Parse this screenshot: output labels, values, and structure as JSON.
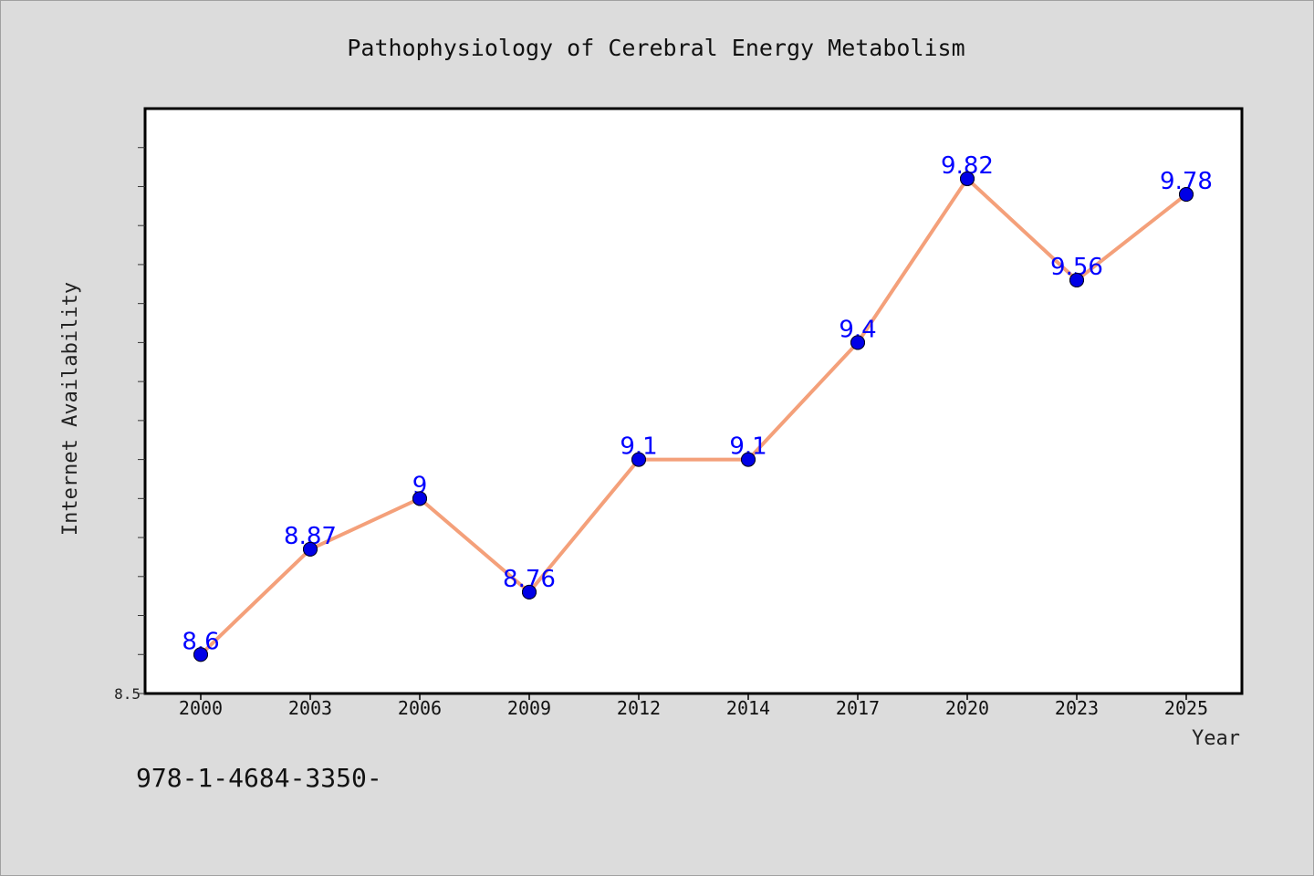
{
  "chart_data": {
    "type": "line",
    "title": "Pathophysiology of Cerebral Energy Metabolism",
    "xlabel": "Year",
    "ylabel": "Internet Availability",
    "categories": [
      "2000",
      "2003",
      "2006",
      "2009",
      "2012",
      "2014",
      "2017",
      "2020",
      "2023",
      "2025"
    ],
    "series": [
      {
        "values": [
          8.6,
          8.87,
          9,
          8.76,
          9.1,
          9.1,
          9.4,
          9.82,
          9.56,
          9.78
        ]
      }
    ],
    "data_labels": [
      "8.6",
      "8.87",
      "9",
      "8.76",
      "9.1",
      "9.1",
      "9.4",
      "9.82",
      "9.56",
      "9.78"
    ],
    "ylim": [
      8.5,
      10.0
    ],
    "y_tick_labels": [
      "8.5"
    ],
    "grid": false,
    "legend": "none",
    "colors": {
      "line": "#f4a07a",
      "marker": "#0000e6",
      "label": "#0000ff"
    }
  },
  "footer": {
    "text": "978-1-4684-3350-"
  }
}
